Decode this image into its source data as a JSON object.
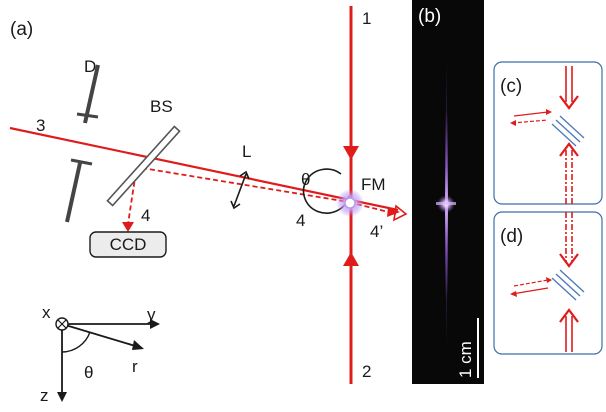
{
  "labels": {
    "panel_a": "(a)",
    "panel_b": "(b)",
    "panel_c": "(c)",
    "panel_d": "(d)",
    "beam_1": "1",
    "beam_2": "2",
    "beam_3": "3",
    "beam_4_ccd": "4",
    "beam_4_fm": "4",
    "beam_4_prime": "4’",
    "diaphragm": "D",
    "beam_splitter": "BS",
    "lens": "L",
    "angle_theta": "θ",
    "focal_mark": "FM",
    "ccd": "CCD",
    "axis_x": "x",
    "axis_y": "y",
    "axis_z": "z",
    "axis_r": "r",
    "axis_theta": "θ",
    "scale_bar": "1 cm"
  },
  "colors": {
    "beam": "#e01b1b",
    "ink": "#1a1a1a",
    "inset_border": "#3d6ea8",
    "mirror_hatch": "#4a78b8",
    "image_bg": "#080808",
    "streak": "#8a55c8",
    "spark": "#f4e6ff"
  }
}
